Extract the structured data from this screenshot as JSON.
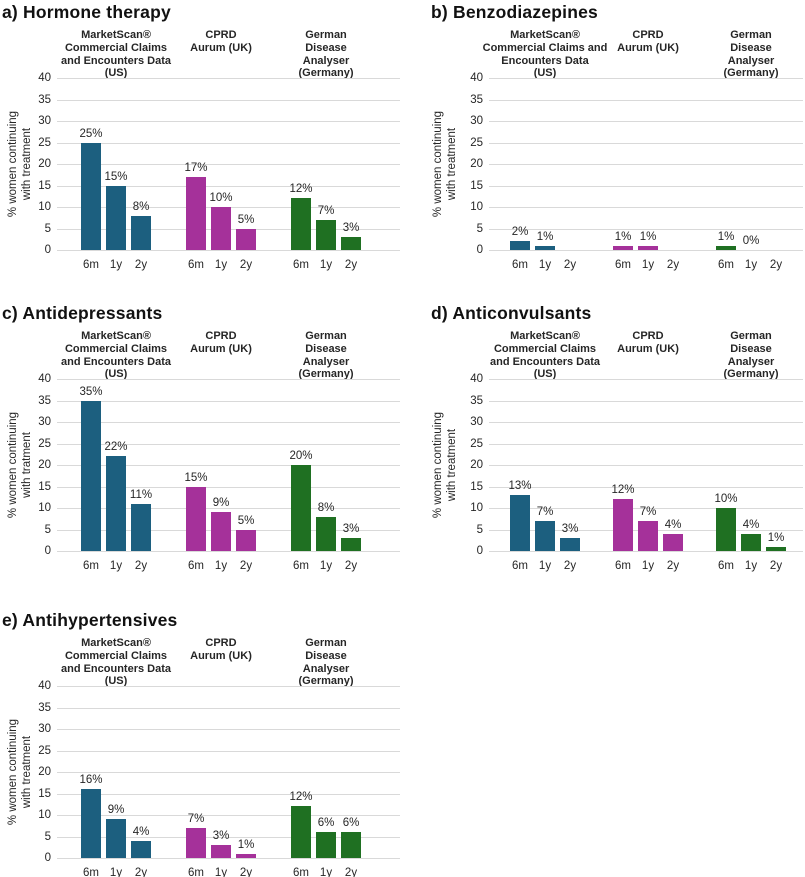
{
  "figure": {
    "background": "#ffffff",
    "description_visible_text_only": true
  },
  "colors": {
    "marketscan_blue": "#1C5F7F",
    "cprd_magenta": "#A5319A",
    "german_green": "#1F7022",
    "gridline_gray": "#D9D9D9",
    "text_dark": "#262626"
  },
  "chart_data": [
    {
      "id": "a",
      "type": "bar",
      "title": "a) Hormone therapy",
      "ylabel": "% women continuing\nwith treatment",
      "ylim": [
        0,
        40
      ],
      "yticks": [
        0,
        5,
        10,
        15,
        20,
        25,
        30,
        35,
        40
      ],
      "grid": true,
      "legend": "none",
      "categories": [
        "6m",
        "1y",
        "2y"
      ],
      "groups": [
        {
          "name": "MarketScan® Commercial Claims and Encounters Data (US)",
          "header": "MarketScan®\nCommercial Claims\nand Encounters Data\n(US)",
          "color_key": "marketscan_blue",
          "values": [
            25,
            15,
            8
          ],
          "labels": [
            "25%",
            "15%",
            "8%"
          ]
        },
        {
          "name": "CPRD Aurum (UK)",
          "header": "CPRD\nAurum (UK)",
          "color_key": "cprd_magenta",
          "values": [
            17,
            10,
            5
          ],
          "labels": [
            "17%",
            "10%",
            "5%"
          ]
        },
        {
          "name": "German Disease Analyser (Germany)",
          "header": "German\nDisease\nAnalyser\n(Germany)",
          "color_key": "german_green",
          "values": [
            12,
            7,
            3
          ],
          "labels": [
            "12%",
            "7%",
            "3%"
          ]
        }
      ]
    },
    {
      "id": "b",
      "type": "bar",
      "title": "b) Benzodiazepines",
      "ylabel": "% women continuing\nwith treatment",
      "ylim": [
        0,
        40
      ],
      "yticks": [
        0,
        5,
        10,
        15,
        20,
        25,
        30,
        35,
        40
      ],
      "grid": true,
      "legend": "none",
      "categories": [
        "6m",
        "1y",
        "2y"
      ],
      "groups": [
        {
          "name": "MarketScan® Commercial Claims and Encounters Data (US)",
          "header": "MarketScan®\nCommercial Claims and\nEncounters Data\n(US)",
          "color_key": "marketscan_blue",
          "values": [
            2,
            1,
            null
          ],
          "labels": [
            "2%",
            "1%",
            null
          ]
        },
        {
          "name": "CPRD Aurum (UK)",
          "header": "CPRD\nAurum (UK)",
          "color_key": "cprd_magenta",
          "values": [
            1,
            1,
            null
          ],
          "labels": [
            "1%",
            "1%",
            null
          ]
        },
        {
          "name": "German Disease Analyser (Germany)",
          "header": "German\nDisease\nAnalyser\n(Germany)",
          "color_key": "german_green",
          "values": [
            1,
            0,
            null
          ],
          "labels": [
            "1%",
            "0%",
            null
          ]
        }
      ]
    },
    {
      "id": "c",
      "type": "bar",
      "title": "c) Antidepressants",
      "ylabel": "% women continuing\nwith tratment",
      "ylim": [
        0,
        40
      ],
      "yticks": [
        0,
        5,
        10,
        15,
        20,
        25,
        30,
        35,
        40
      ],
      "grid": true,
      "legend": "none",
      "categories": [
        "6m",
        "1y",
        "2y"
      ],
      "groups": [
        {
          "name": "MarketScan® Commercial Claims and Encounters Data (US)",
          "header": "MarketScan®\nCommercial Claims\nand Encounters Data\n(US)",
          "color_key": "marketscan_blue",
          "values": [
            35,
            22,
            11
          ],
          "labels": [
            "35%",
            "22%",
            "11%"
          ]
        },
        {
          "name": "CPRD Aurum (UK)",
          "header": "CPRD\nAurum (UK)",
          "color_key": "cprd_magenta",
          "values": [
            15,
            9,
            5
          ],
          "labels": [
            "15%",
            "9%",
            "5%"
          ]
        },
        {
          "name": "German Disease Analyser (Germany)",
          "header": "German\nDisease\nAnalyser\n(Germany)",
          "color_key": "german_green",
          "values": [
            20,
            8,
            3
          ],
          "labels": [
            "20%",
            "8%",
            "3%"
          ]
        }
      ]
    },
    {
      "id": "d",
      "type": "bar",
      "title": "d) Anticonvulsants",
      "ylabel": "% women continuing\nwith treatment",
      "ylim": [
        0,
        40
      ],
      "yticks": [
        0,
        5,
        10,
        15,
        20,
        25,
        30,
        35,
        40
      ],
      "grid": true,
      "legend": "none",
      "categories": [
        "6m",
        "1y",
        "2y"
      ],
      "groups": [
        {
          "name": "MarketScan® Commercial Claims and Encounters Data (US)",
          "header": "MarketScan®\nCommercial Claims\nand Encounters Data\n(US)",
          "color_key": "marketscan_blue",
          "values": [
            13,
            7,
            3
          ],
          "labels": [
            "13%",
            "7%",
            "3%"
          ]
        },
        {
          "name": "CPRD Aurum (UK)",
          "header": "CPRD\nAurum (UK)",
          "color_key": "cprd_magenta",
          "values": [
            12,
            7,
            4
          ],
          "labels": [
            "12%",
            "7%",
            "4%"
          ]
        },
        {
          "name": "German Disease Analyser (Germany)",
          "header": "German\nDisease\nAnalyser\n(Germany)",
          "color_key": "german_green",
          "values": [
            10,
            4,
            1
          ],
          "labels": [
            "10%",
            "4%",
            "1%"
          ]
        }
      ]
    },
    {
      "id": "e",
      "type": "bar",
      "title": "e) Antihypertensives",
      "ylabel": "% women continuing\nwith treatment",
      "ylim": [
        0,
        40
      ],
      "yticks": [
        0,
        5,
        10,
        15,
        20,
        25,
        30,
        35,
        40
      ],
      "grid": true,
      "legend": "none",
      "categories": [
        "6m",
        "1y",
        "2y"
      ],
      "groups": [
        {
          "name": "MarketScan® Commercial Claims and Encounters Data (US)",
          "header": "MarketScan®\nCommercial Claims\nand Encounters Data\n(US)",
          "color_key": "marketscan_blue",
          "values": [
            16,
            9,
            4
          ],
          "labels": [
            "16%",
            "9%",
            "4%"
          ]
        },
        {
          "name": "CPRD Aurum (UK)",
          "header": "CPRD\nAurum (UK)",
          "color_key": "cprd_magenta",
          "values": [
            7,
            3,
            1
          ],
          "labels": [
            "7%",
            "3%",
            "1%"
          ]
        },
        {
          "name": "German Disease Analyser (Germany)",
          "header": "German\nDisease\nAnalyser\n(Germany)",
          "color_key": "german_green",
          "values": [
            12,
            6,
            6
          ],
          "labels": [
            "12%",
            "6%",
            "6%"
          ]
        }
      ]
    }
  ]
}
